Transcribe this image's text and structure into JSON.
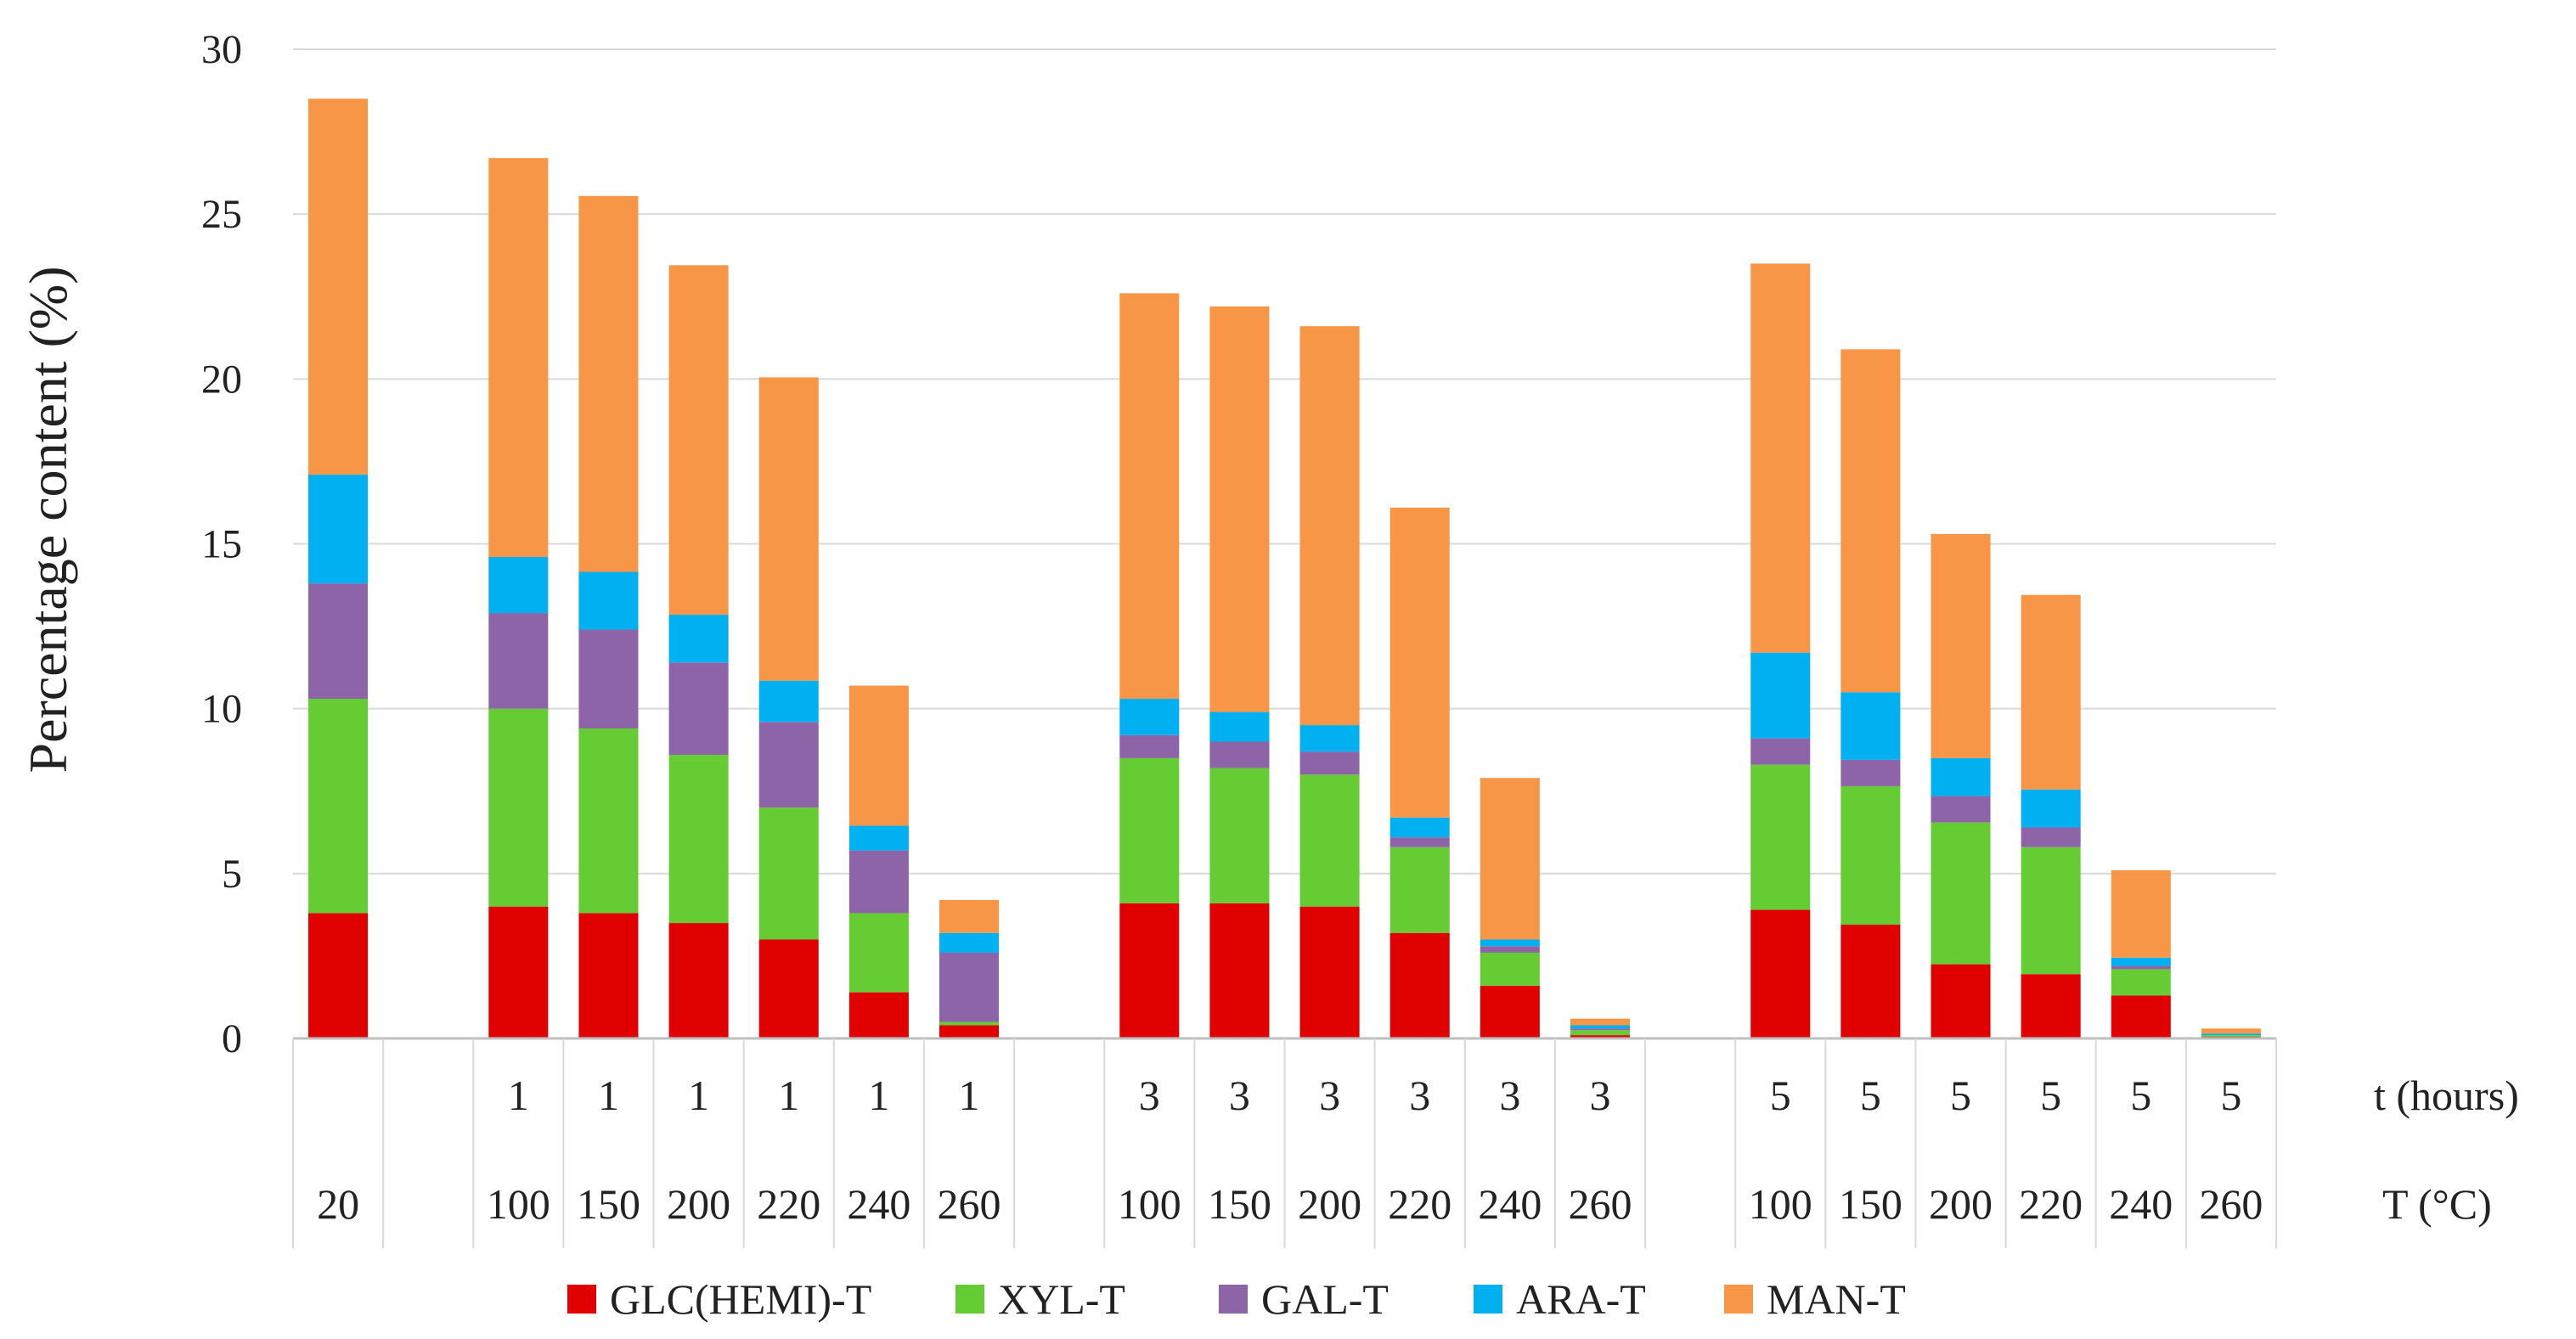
{
  "chart_data": {
    "type": "bar",
    "stacked": true,
    "title": "",
    "ylabel": "Percentage content (%)",
    "ylim": [
      0,
      30
    ],
    "yticks": [
      0,
      5,
      10,
      15,
      20,
      25,
      30
    ],
    "grid": true,
    "legend_position": "bottom",
    "row_labels": {
      "time": "t (hours)",
      "temperature": "T (°C)"
    },
    "categories": [
      {
        "time": "",
        "temperature": "20",
        "blank": false
      },
      {
        "time": "",
        "temperature": "",
        "blank": true
      },
      {
        "time": "1",
        "temperature": "100",
        "blank": false
      },
      {
        "time": "1",
        "temperature": "150",
        "blank": false
      },
      {
        "time": "1",
        "temperature": "200",
        "blank": false
      },
      {
        "time": "1",
        "temperature": "220",
        "blank": false
      },
      {
        "time": "1",
        "temperature": "240",
        "blank": false
      },
      {
        "time": "1",
        "temperature": "260",
        "blank": false
      },
      {
        "time": "",
        "temperature": "",
        "blank": true
      },
      {
        "time": "3",
        "temperature": "100",
        "blank": false
      },
      {
        "time": "3",
        "temperature": "150",
        "blank": false
      },
      {
        "time": "3",
        "temperature": "200",
        "blank": false
      },
      {
        "time": "3",
        "temperature": "220",
        "blank": false
      },
      {
        "time": "3",
        "temperature": "240",
        "blank": false
      },
      {
        "time": "3",
        "temperature": "260",
        "blank": false
      },
      {
        "time": "",
        "temperature": "",
        "blank": true
      },
      {
        "time": "5",
        "temperature": "100",
        "blank": false
      },
      {
        "time": "5",
        "temperature": "150",
        "blank": false
      },
      {
        "time": "5",
        "temperature": "200",
        "blank": false
      },
      {
        "time": "5",
        "temperature": "220",
        "blank": false
      },
      {
        "time": "5",
        "temperature": "240",
        "blank": false
      },
      {
        "time": "5",
        "temperature": "260",
        "blank": false
      }
    ],
    "series": [
      {
        "name": "GLC(HEMI)-T",
        "color": "#e00000",
        "values": [
          3.8,
          null,
          4.0,
          3.8,
          3.5,
          3.0,
          1.4,
          0.4,
          null,
          4.1,
          4.1,
          4.0,
          3.2,
          1.6,
          0.1,
          null,
          3.9,
          3.45,
          2.25,
          1.95,
          1.3,
          0.05
        ]
      },
      {
        "name": "XYL-T",
        "color": "#66cc33",
        "values": [
          6.5,
          null,
          6.0,
          5.6,
          5.1,
          4.0,
          2.4,
          0.1,
          null,
          4.4,
          4.1,
          4.0,
          2.6,
          1.0,
          0.15,
          null,
          4.4,
          4.2,
          4.3,
          3.85,
          0.8,
          0.05
        ]
      },
      {
        "name": "GAL-T",
        "color": "#8e64a8",
        "values": [
          3.5,
          null,
          2.9,
          3.0,
          2.8,
          2.6,
          1.9,
          2.1,
          null,
          0.7,
          0.8,
          0.7,
          0.3,
          0.2,
          0.05,
          null,
          0.8,
          0.8,
          0.8,
          0.6,
          0.1,
          0.0
        ]
      },
      {
        "name": "ARA-T",
        "color": "#00b0f0",
        "values": [
          3.3,
          null,
          1.7,
          1.75,
          1.45,
          1.25,
          0.75,
          0.6,
          null,
          1.1,
          0.9,
          0.8,
          0.6,
          0.2,
          0.1,
          null,
          2.6,
          2.05,
          1.15,
          1.15,
          0.25,
          0.05
        ]
      },
      {
        "name": "MAN-T",
        "color": "#f79646",
        "values": [
          11.4,
          null,
          12.1,
          11.4,
          10.6,
          9.2,
          4.25,
          1.0,
          null,
          12.3,
          12.3,
          12.1,
          9.4,
          4.9,
          0.2,
          null,
          11.8,
          10.4,
          6.8,
          5.9,
          2.65,
          0.15
        ]
      }
    ]
  }
}
